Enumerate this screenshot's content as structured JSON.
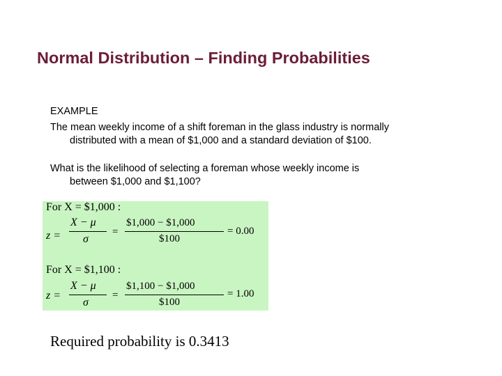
{
  "title": "Normal Distribution – Finding Probabilities",
  "example_label": "EXAMPLE",
  "paragraph1": {
    "line1": "The mean weekly income of a shift foreman in the glass industry is normally",
    "line2": "distributed with a mean of $1,000 and a standard deviation of $100."
  },
  "paragraph2": {
    "line1": "What is the likelihood of selecting a foreman whose weekly income is",
    "line2": "between $1,000 and $1,100?"
  },
  "formulas": [
    {
      "header": "For X = $1,000 :",
      "z_label": "z =",
      "symbolic_numerator": "X − μ",
      "symbolic_denominator": "σ",
      "eq1": "=",
      "numeric_numerator": "$1,000 − $1,000",
      "numeric_denominator": "$100",
      "result": "= 0.00"
    },
    {
      "header": "For X = $1,100 :",
      "z_label": "z =",
      "symbolic_numerator": "X − μ",
      "symbolic_denominator": "σ",
      "eq1": "=",
      "numeric_numerator": "$1,100 − $1,000",
      "numeric_denominator": "$100",
      "result": "= 1.00"
    }
  ],
  "conclusion": "Required probability is 0.3413",
  "colors": {
    "title": "#6b1d38",
    "formula_background": "#c9f5c2"
  }
}
